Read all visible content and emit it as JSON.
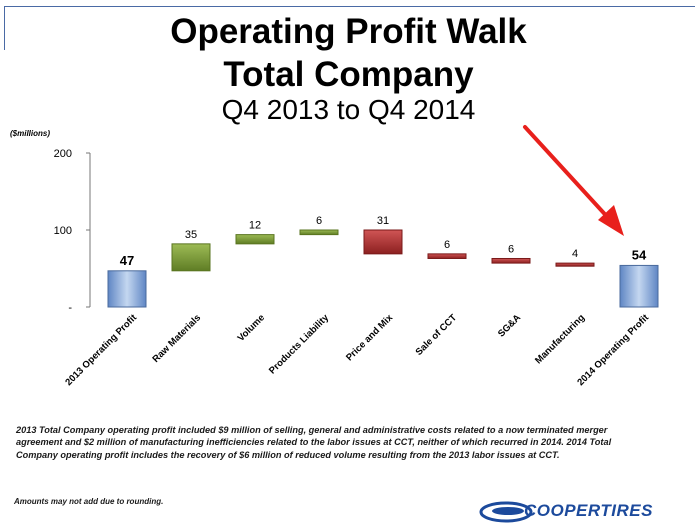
{
  "header": {
    "title_line1": "Operating Profit Walk",
    "title_line2": "Total Company",
    "title_line3": "Q4 2013 to Q4 2014"
  },
  "chart_data": {
    "type": "bar",
    "subtype": "waterfall",
    "unit_label": "($millions)",
    "ylim": [
      0,
      200
    ],
    "yticks": [
      {
        "value": 0,
        "label": "-"
      },
      {
        "value": 100,
        "label": "100"
      },
      {
        "value": 200,
        "label": "200"
      }
    ],
    "categories": [
      "2013 Operating Profit",
      "Raw Materials",
      "Volume",
      "Products Liability",
      "Price and Mix",
      "Sale of CCT",
      "SG&A",
      "Manufacturing",
      "2014 Operating Profit"
    ],
    "steps": [
      {
        "category": "2013 Operating Profit",
        "kind": "total",
        "start": 0,
        "end": 47,
        "label": "47"
      },
      {
        "category": "Raw Materials",
        "kind": "increase",
        "start": 47,
        "end": 82,
        "label": "35"
      },
      {
        "category": "Volume",
        "kind": "increase",
        "start": 82,
        "end": 94,
        "label": "12"
      },
      {
        "category": "Products Liability",
        "kind": "increase",
        "start": 94,
        "end": 100,
        "label": "6"
      },
      {
        "category": "Price and Mix",
        "kind": "decrease",
        "start": 100,
        "end": 69,
        "label": "31"
      },
      {
        "category": "Sale of CCT",
        "kind": "decrease",
        "start": 69,
        "end": 63,
        "label": "6"
      },
      {
        "category": "SG&A",
        "kind": "decrease",
        "start": 63,
        "end": 57,
        "label": "6"
      },
      {
        "category": "Manufacturing",
        "kind": "decrease",
        "start": 57,
        "end": 53,
        "label": "4"
      },
      {
        "category": "2014 Operating Profit",
        "kind": "total",
        "start": 0,
        "end": 54,
        "label": "54"
      }
    ],
    "grid": false,
    "colors": {
      "total": "#8eb1dc",
      "increase": "#7a9a35",
      "decrease": "#b03535",
      "arrow": "#e8201c"
    }
  },
  "footnote": "2013 Total Company operating profit included $9 million of selling, general and administrative costs related to a now terminated merger agreement and $2 million of  manufacturing inefficiencies related to the labor issues at CCT, neither of which recurred in 2014.  2014 Total Company operating profit includes the recovery of $6 million of reduced volume resulting from the 2013 labor issues at CCT.",
  "disclaimer": "Amounts may not add due to rounding.",
  "logo": {
    "text": "COOPERTIRES",
    "color": "#1c4a9c"
  }
}
